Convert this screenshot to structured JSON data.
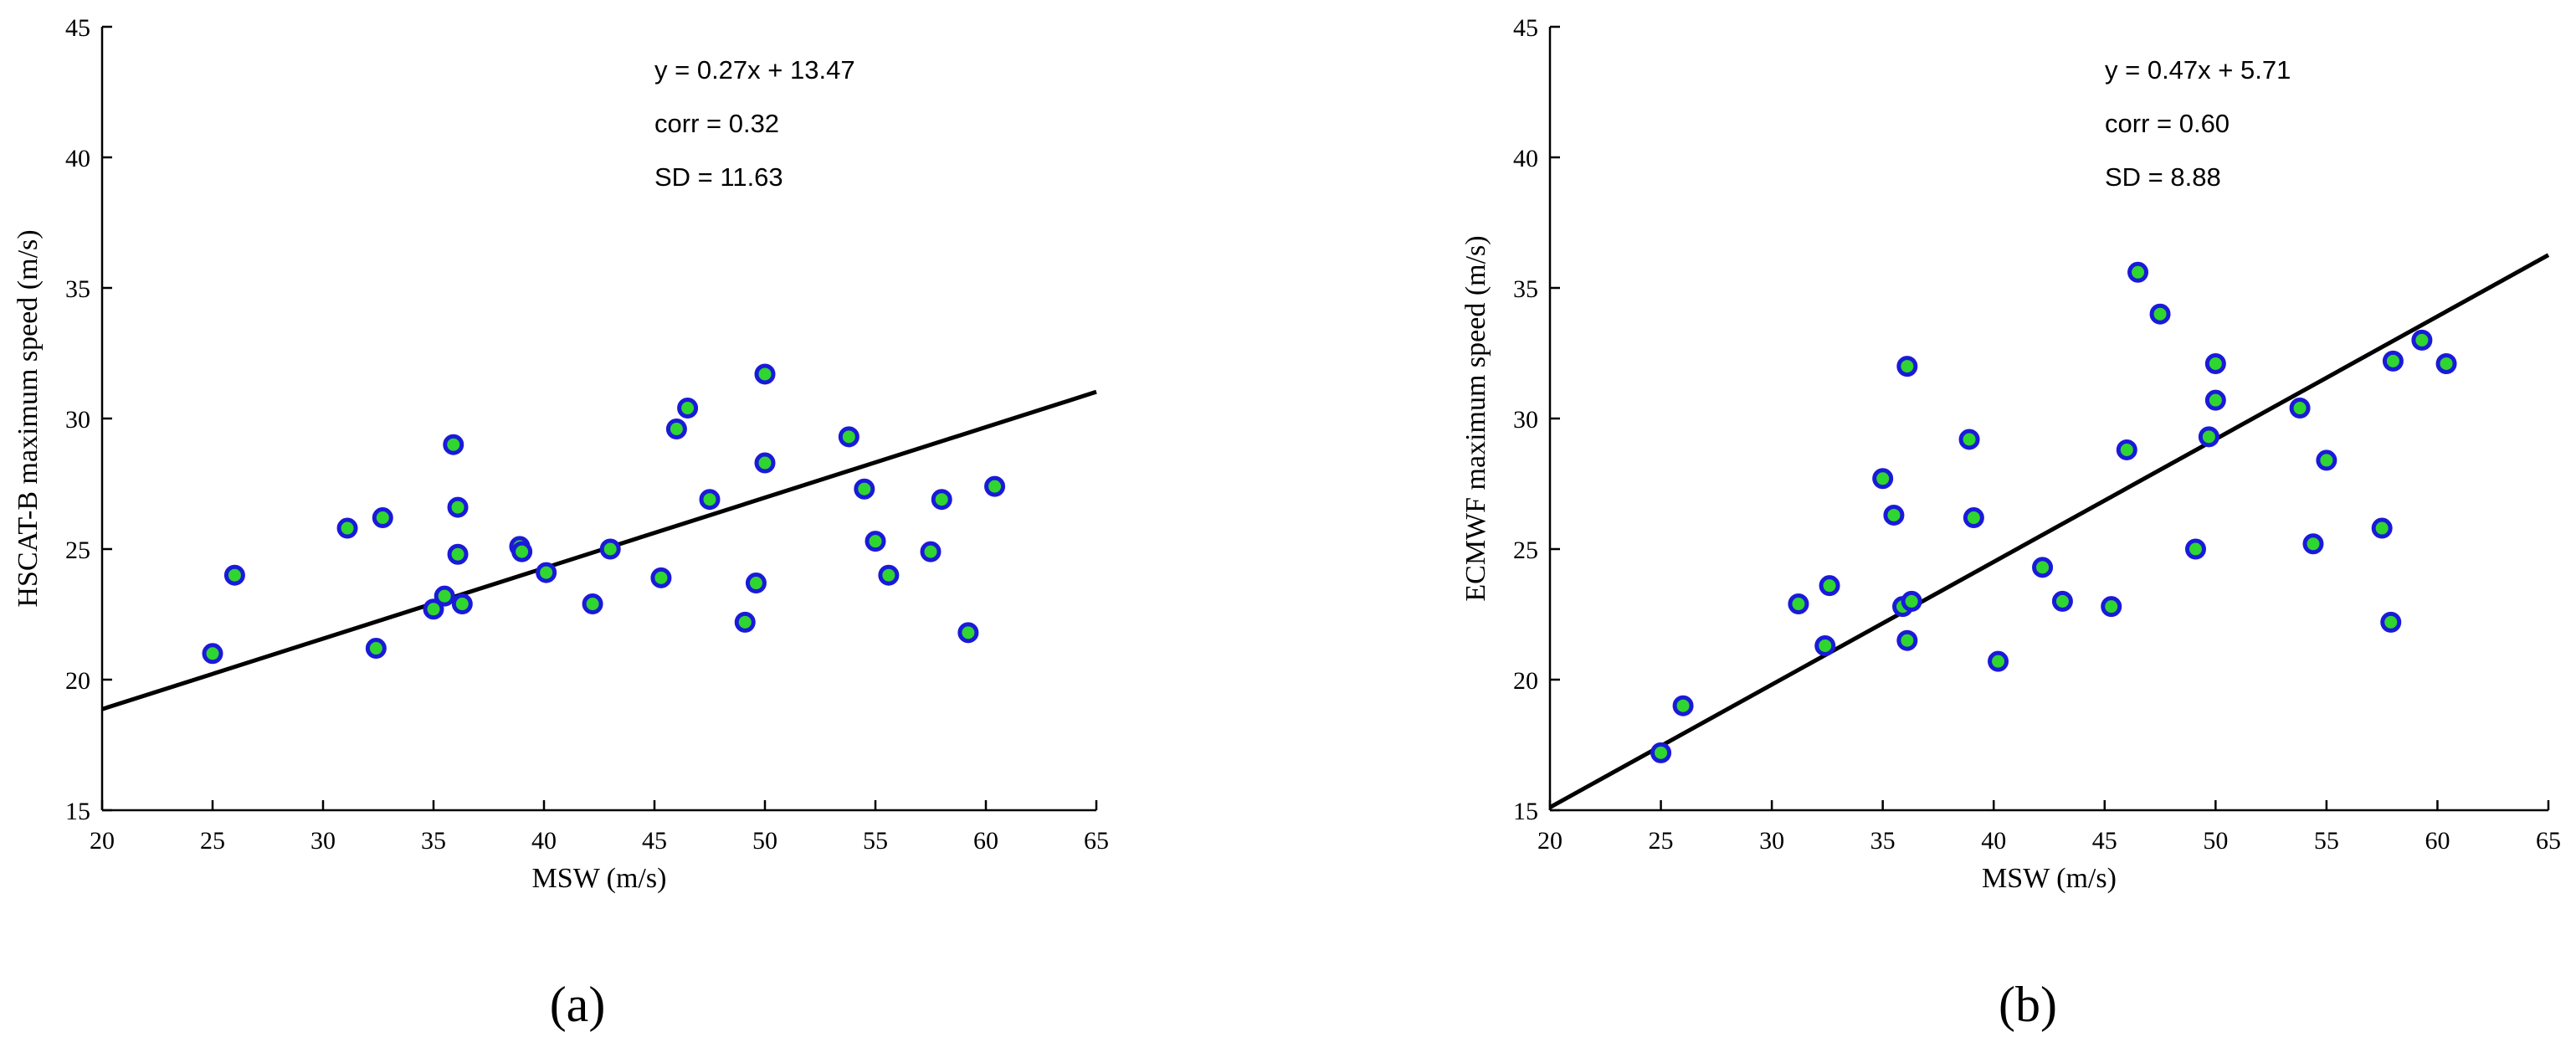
{
  "colors": {
    "marker_edge": "#1a1ad9",
    "marker_fill": "#2fd62f",
    "line": "#000000",
    "axis": "#000000",
    "text": "#000000"
  },
  "chart_data": [
    {
      "type": "scatter",
      "panel_label": "(a)",
      "xlabel": "MSW (m/s)",
      "ylabel": "HSCAT-B maximum speed (m/s)",
      "xlim": [
        20,
        65
      ],
      "ylim": [
        15,
        45
      ],
      "xticks": [
        20,
        25,
        30,
        35,
        40,
        45,
        50,
        55,
        60,
        65
      ],
      "yticks": [
        15,
        20,
        25,
        30,
        35,
        40,
        45
      ],
      "grid": false,
      "annotations": [
        "y = 0.27x + 13.47",
        "corr = 0.32",
        "SD = 11.63"
      ],
      "fit": {
        "slope": 0.27,
        "intercept": 13.47
      },
      "points": [
        [
          25.0,
          21.0
        ],
        [
          26.0,
          24.0
        ],
        [
          31.1,
          25.8
        ],
        [
          32.4,
          21.2
        ],
        [
          32.7,
          26.2
        ],
        [
          35.0,
          22.7
        ],
        [
          35.5,
          23.2
        ],
        [
          35.9,
          29.0
        ],
        [
          36.1,
          26.6
        ],
        [
          36.1,
          24.8
        ],
        [
          36.3,
          22.9
        ],
        [
          38.9,
          25.1
        ],
        [
          39.0,
          24.9
        ],
        [
          40.1,
          24.1
        ],
        [
          42.2,
          22.9
        ],
        [
          43.0,
          25.0
        ],
        [
          45.3,
          23.9
        ],
        [
          46.0,
          29.6
        ],
        [
          46.5,
          30.4
        ],
        [
          47.5,
          26.9
        ],
        [
          49.1,
          22.2
        ],
        [
          49.6,
          23.7
        ],
        [
          50.0,
          31.7
        ],
        [
          50.0,
          28.3
        ],
        [
          53.8,
          29.3
        ],
        [
          54.5,
          27.3
        ],
        [
          55.0,
          25.3
        ],
        [
          55.6,
          24.0
        ],
        [
          57.5,
          24.9
        ],
        [
          58.0,
          26.9
        ],
        [
          59.2,
          21.8
        ],
        [
          60.4,
          27.4
        ]
      ]
    },
    {
      "type": "scatter",
      "panel_label": "(b)",
      "xlabel": "MSW (m/s)",
      "ylabel": "ECMWF maximum speed (m/s)",
      "xlim": [
        20,
        65
      ],
      "ylim": [
        15,
        45
      ],
      "xticks": [
        20,
        25,
        30,
        35,
        40,
        45,
        50,
        55,
        60,
        65
      ],
      "yticks": [
        15,
        20,
        25,
        30,
        35,
        40,
        45
      ],
      "grid": false,
      "annotations": [
        "y = 0.47x + 5.71",
        "corr = 0.60",
        "SD = 8.88"
      ],
      "fit": {
        "slope": 0.47,
        "intercept": 5.71
      },
      "points": [
        [
          25.0,
          17.2
        ],
        [
          26.0,
          19.0
        ],
        [
          31.2,
          22.9
        ],
        [
          32.4,
          21.3
        ],
        [
          32.6,
          23.6
        ],
        [
          35.0,
          27.7
        ],
        [
          35.5,
          26.3
        ],
        [
          35.9,
          22.8
        ],
        [
          36.1,
          32.0
        ],
        [
          36.1,
          21.5
        ],
        [
          36.3,
          23.0
        ],
        [
          38.9,
          29.2
        ],
        [
          39.1,
          26.2
        ],
        [
          40.2,
          20.7
        ],
        [
          42.2,
          24.3
        ],
        [
          43.1,
          23.0
        ],
        [
          45.3,
          22.8
        ],
        [
          46.0,
          28.8
        ],
        [
          46.5,
          35.6
        ],
        [
          47.5,
          34.0
        ],
        [
          49.1,
          25.0
        ],
        [
          49.7,
          29.3
        ],
        [
          50.0,
          32.1
        ],
        [
          50.0,
          30.7
        ],
        [
          53.8,
          30.4
        ],
        [
          54.4,
          25.2
        ],
        [
          55.0,
          28.4
        ],
        [
          57.5,
          25.8
        ],
        [
          57.9,
          22.2
        ],
        [
          58.0,
          32.2
        ],
        [
          59.3,
          33.0
        ],
        [
          60.4,
          32.1
        ]
      ]
    }
  ]
}
